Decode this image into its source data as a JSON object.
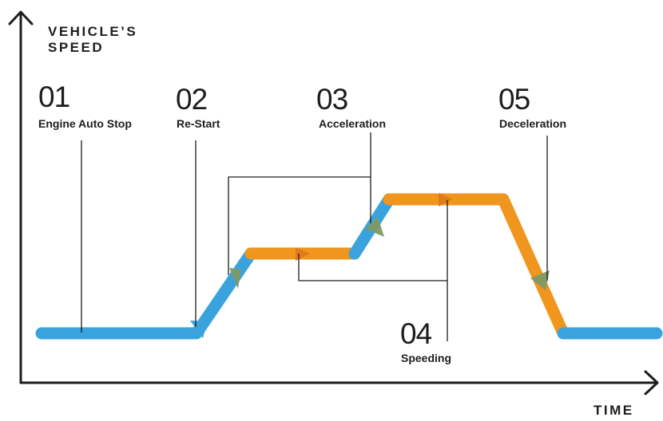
{
  "axes": {
    "y_label_line1": "VEHICLE’S",
    "y_label_line2": "SPEED",
    "x_label": "TIME"
  },
  "phases": [
    {
      "number": "01",
      "label": "Engine Auto Stop"
    },
    {
      "number": "02",
      "label": "Re-Start"
    },
    {
      "number": "03",
      "label": "Acceleration"
    },
    {
      "number": "04",
      "label": "Speeding"
    },
    {
      "number": "05",
      "label": "Deceleration"
    }
  ],
  "colors": {
    "axis": "#1d1d1d",
    "stopped_segment": "#3aa3dd",
    "moving_segment": "#f0951d",
    "arrow_on_blue": "#7d9a65",
    "arrow_on_orange": "#e07a1a",
    "leader_line": "#1d1d1d"
  }
}
